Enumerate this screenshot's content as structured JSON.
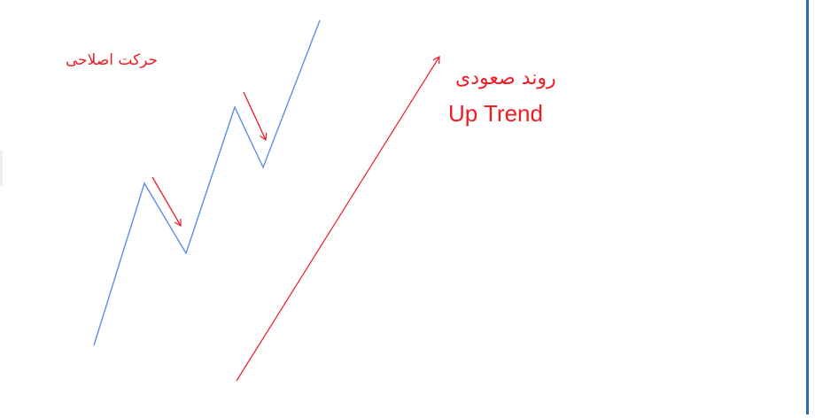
{
  "labels": {
    "correction": "حرکت اصلاحی",
    "uptrend_fa": "روند صعودی",
    "uptrend_en": "Up Trend"
  },
  "colors": {
    "price_line": "#5b8ee6",
    "arrows": "#ee1c25",
    "label_text": "#ee1c25",
    "frame_border": "#2b6cb0",
    "background": "#ffffff"
  }
}
